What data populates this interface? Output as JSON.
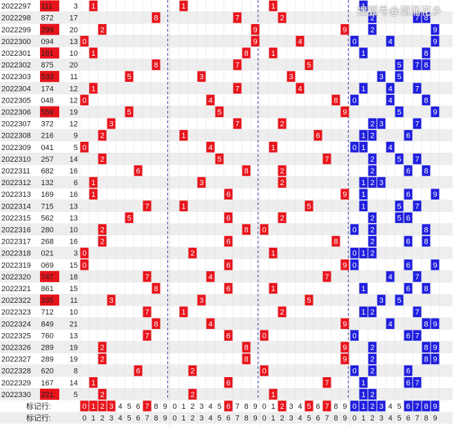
{
  "watermark": "搜狐号@潮涌花乡",
  "colors": {
    "red": "#e8141c",
    "blue": "#1f1fdf",
    "grid": "#dcdcdc",
    "stripe": "#eeeeee",
    "divider": "#3a3ab0"
  },
  "chart_data": {
    "type": "table",
    "rows": [
      {
        "issue": "2022297",
        "number": "111",
        "sum": "3",
        "hl": true
      },
      {
        "issue": "2022298",
        "number": "872",
        "sum": "17",
        "hl": false
      },
      {
        "issue": "2022299",
        "number": "299",
        "sum": "20",
        "hl": true
      },
      {
        "issue": "2022300",
        "number": "094",
        "sum": "13",
        "hl": false
      },
      {
        "issue": "2022301",
        "number": "181",
        "sum": "10",
        "hl": true
      },
      {
        "issue": "2022302",
        "number": "875",
        "sum": "20",
        "hl": false
      },
      {
        "issue": "2022303",
        "number": "533",
        "sum": "11",
        "hl": true
      },
      {
        "issue": "2022304",
        "number": "174",
        "sum": "12",
        "hl": false
      },
      {
        "issue": "2022305",
        "number": "048",
        "sum": "12",
        "hl": false
      },
      {
        "issue": "2022306",
        "number": "559",
        "sum": "19",
        "hl": true
      },
      {
        "issue": "2022307",
        "number": "372",
        "sum": "12",
        "hl": false
      },
      {
        "issue": "2022308",
        "number": "216",
        "sum": "9",
        "hl": false
      },
      {
        "issue": "2022309",
        "number": "041",
        "sum": "5",
        "hl": false
      },
      {
        "issue": "2022310",
        "number": "257",
        "sum": "14",
        "hl": false
      },
      {
        "issue": "2022311",
        "number": "682",
        "sum": "16",
        "hl": false
      },
      {
        "issue": "2022312",
        "number": "132",
        "sum": "6",
        "hl": false
      },
      {
        "issue": "2022313",
        "number": "169",
        "sum": "16",
        "hl": false
      },
      {
        "issue": "2022314",
        "number": "715",
        "sum": "13",
        "hl": false
      },
      {
        "issue": "2022315",
        "number": "562",
        "sum": "13",
        "hl": false
      },
      {
        "issue": "2022316",
        "number": "280",
        "sum": "10",
        "hl": false
      },
      {
        "issue": "2022317",
        "number": "268",
        "sum": "16",
        "hl": false
      },
      {
        "issue": "2022318",
        "number": "021",
        "sum": "3",
        "hl": false
      },
      {
        "issue": "2022319",
        "number": "069",
        "sum": "15",
        "hl": false
      },
      {
        "issue": "2022320",
        "number": "747",
        "sum": "18",
        "hl": true
      },
      {
        "issue": "2022321",
        "number": "861",
        "sum": "15",
        "hl": false
      },
      {
        "issue": "2022322",
        "number": "335",
        "sum": "11",
        "hl": true
      },
      {
        "issue": "2022323",
        "number": "712",
        "sum": "10",
        "hl": false
      },
      {
        "issue": "2022324",
        "number": "849",
        "sum": "21",
        "hl": false
      },
      {
        "issue": "2022325",
        "number": "760",
        "sum": "13",
        "hl": false
      },
      {
        "issue": "2022326",
        "number": "289",
        "sum": "19",
        "hl": false
      },
      {
        "issue": "2022327",
        "number": "289",
        "sum": "19",
        "hl": false
      },
      {
        "issue": "2022328",
        "number": "620",
        "sum": "8",
        "hl": false
      },
      {
        "issue": "2022329",
        "number": "167",
        "sum": "14",
        "hl": false
      },
      {
        "issue": "2022330",
        "number": "221",
        "sum": "5",
        "hl": true
      }
    ],
    "footer": [
      {
        "label": "标记行:",
        "marked": [
          [
            0,
            1,
            2,
            3,
            7
          ],
          [
            6
          ],
          [
            2,
            5,
            7
          ],
          [
            0,
            1,
            2,
            3,
            6,
            7,
            8,
            9
          ]
        ]
      },
      {
        "label": "标记行:",
        "marked": [
          [],
          [],
          [],
          []
        ]
      },
      {
        "label": "标记行:",
        "marked": [
          [],
          [],
          [],
          []
        ]
      }
    ]
  }
}
